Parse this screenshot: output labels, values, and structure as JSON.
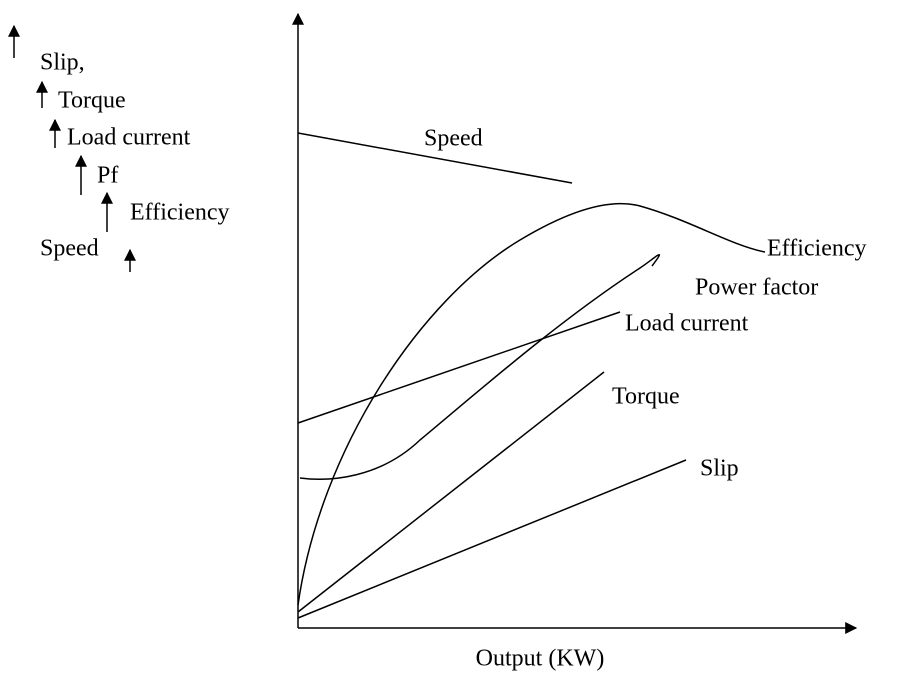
{
  "legend": {
    "items": [
      "Slip,",
      "Torque",
      "Load current",
      "Pf",
      "Efficiency",
      "Speed"
    ]
  },
  "curves": [
    {
      "label": "Speed"
    },
    {
      "label": "Efficiency"
    },
    {
      "label": "Power factor"
    },
    {
      "label": "Load current"
    },
    {
      "label": "Torque"
    },
    {
      "label": "Slip"
    }
  ],
  "x_axis": {
    "label": "Output (KW)"
  }
}
